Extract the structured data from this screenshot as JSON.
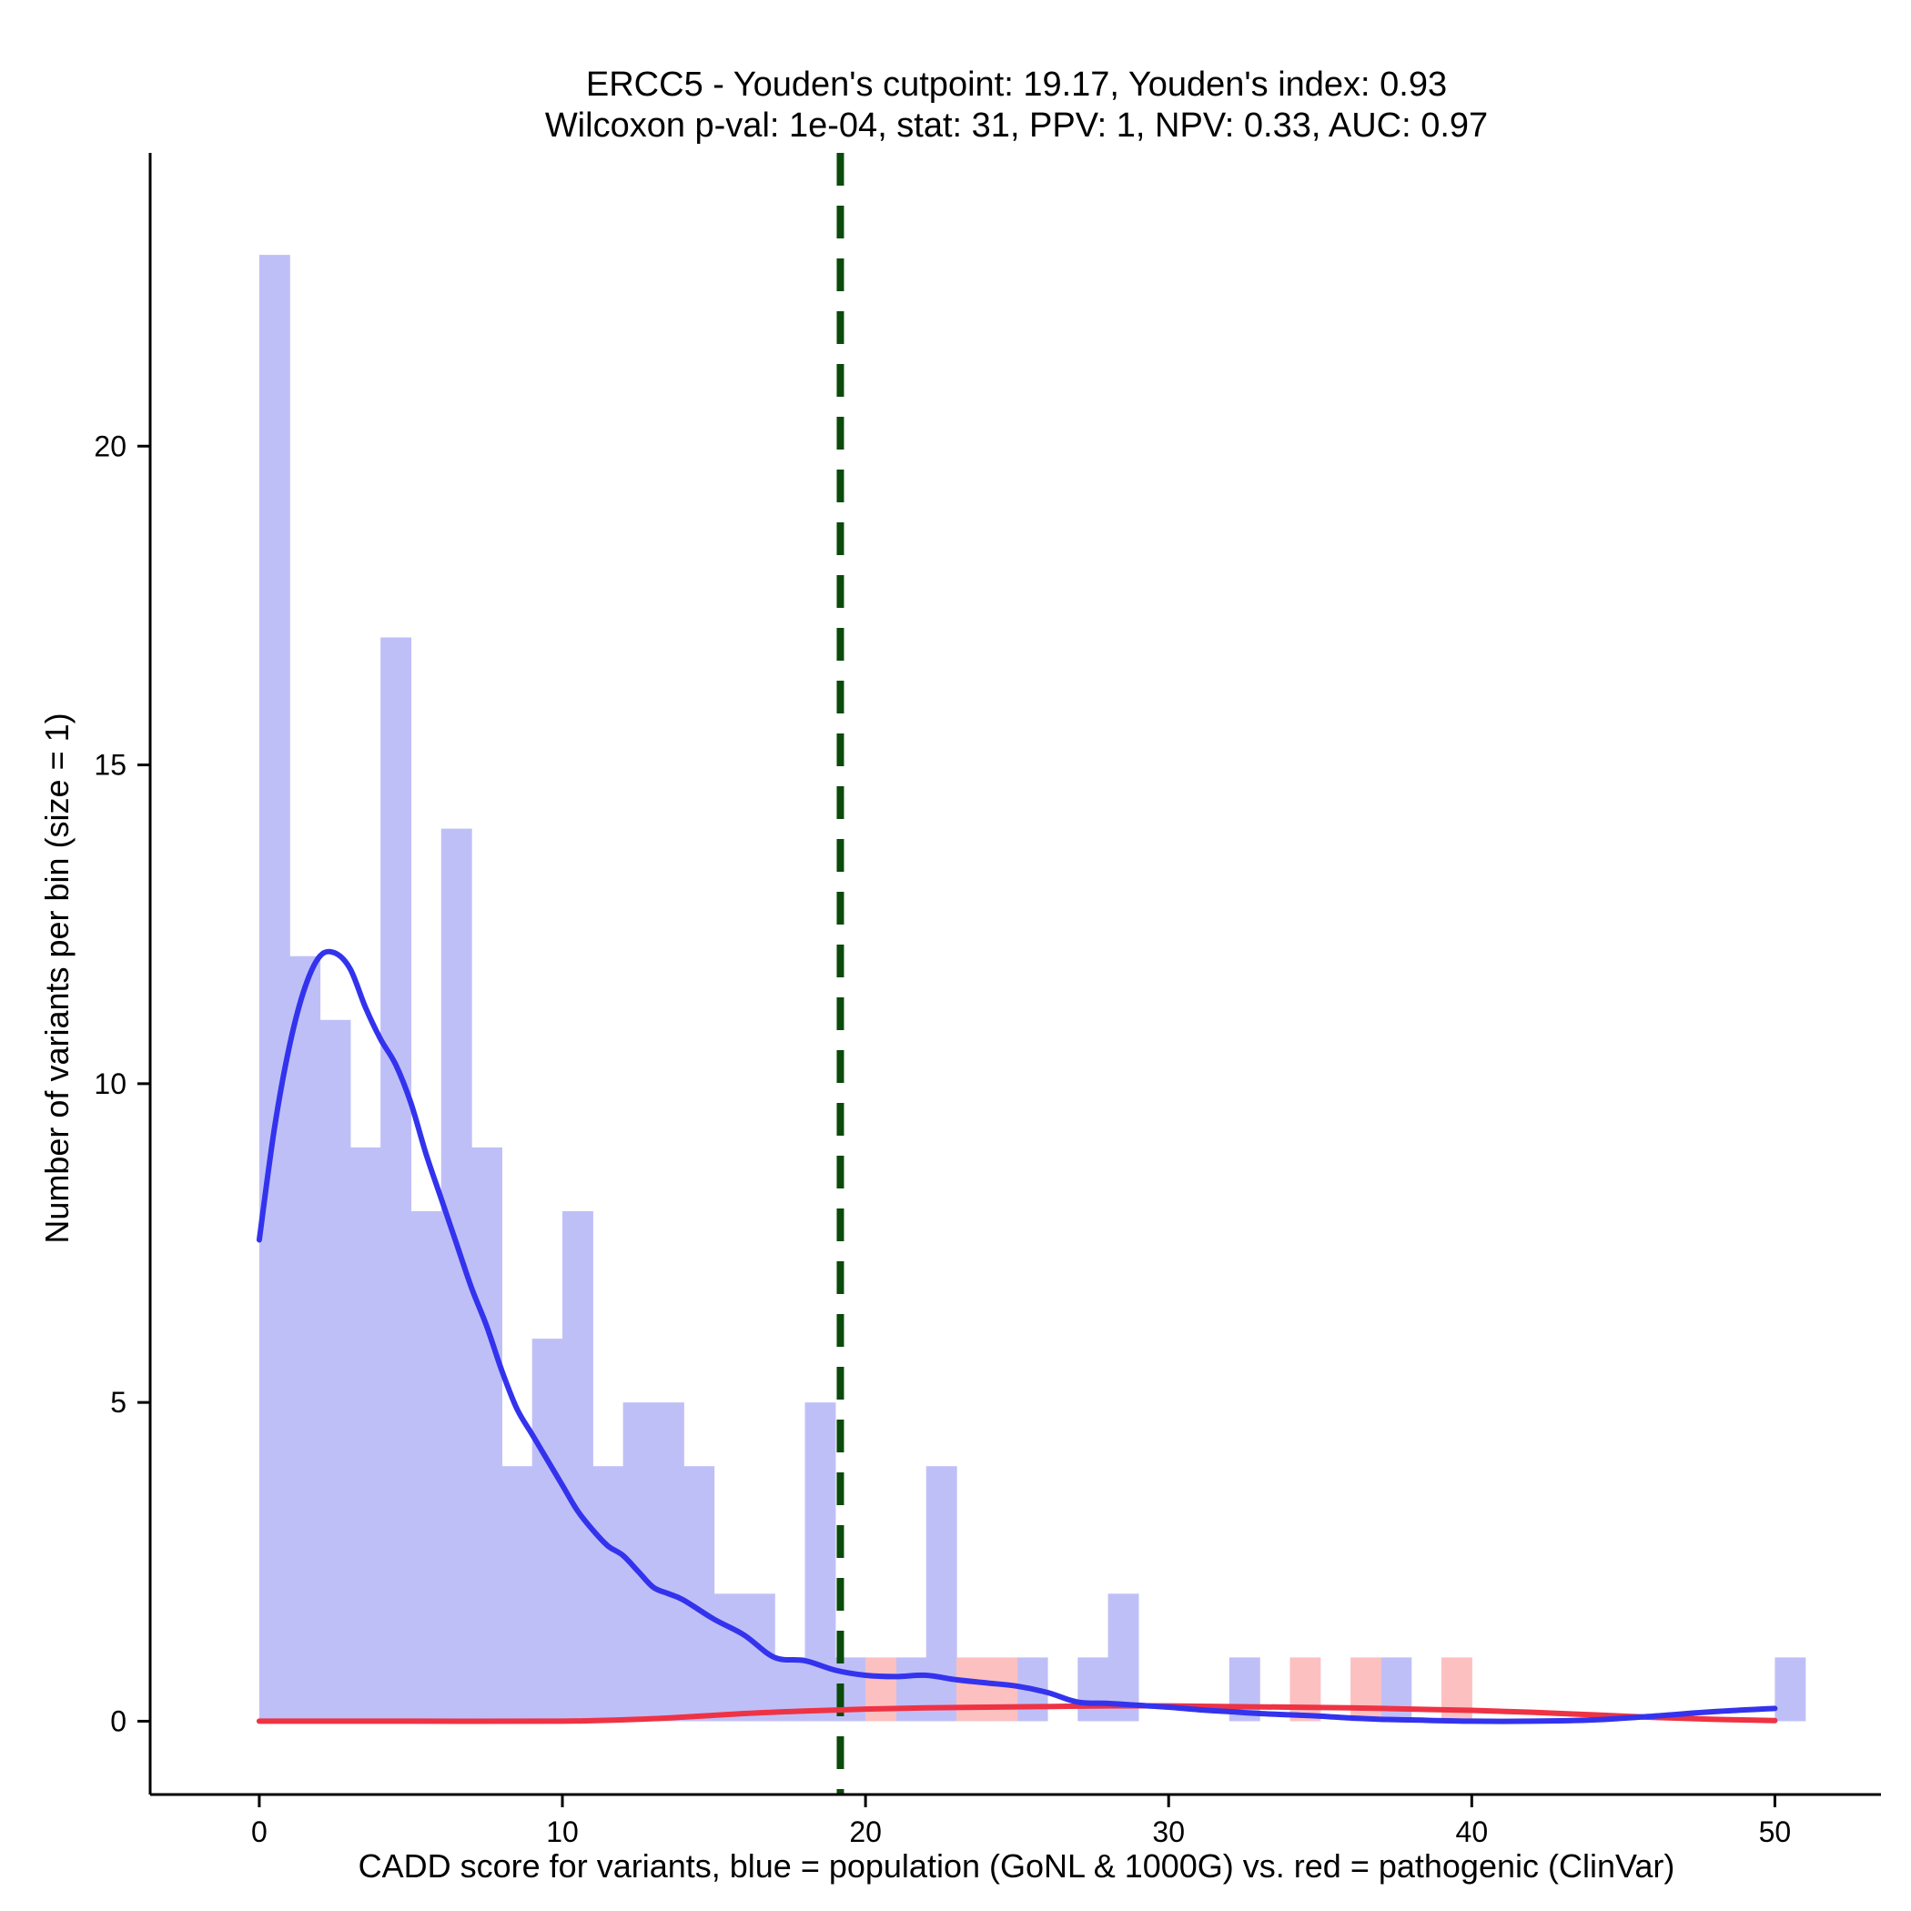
{
  "chart_data": {
    "type": "bar",
    "title_lines": [
      "ERCC5 - Youden's cutpoint: 19.17, Youden's index: 0.93",
      "Wilcoxon p-val: 1e-04, stat: 31, PPV: 1, NPV: 0.33, AUC: 0.97"
    ],
    "xlabel": "CADD score for variants, blue = population (GoNL & 1000G) vs. red = pathogenic (ClinVar)",
    "ylabel": "Number of variants per bin (size = 1)",
    "xlim": [
      -3.6,
      53.5
    ],
    "ylim": [
      -1.15,
      24.6
    ],
    "xticks": [
      "0",
      "10",
      "20",
      "30",
      "40",
      "50"
    ],
    "yticks": [
      "0",
      "5",
      "10",
      "15",
      "20"
    ],
    "cutpoint": 19.17,
    "colors": {
      "population_bar": "#bfbff8",
      "pathogenic_bar": "#fcc0c0",
      "population_line": "#3333ee",
      "pathogenic_line": "#ee3344",
      "cutpoint_line": "#0a4a0a"
    },
    "series": [
      {
        "name": "population",
        "bins": [
          {
            "x": 0,
            "count": 23
          },
          {
            "x": 1,
            "count": 12
          },
          {
            "x": 2,
            "count": 11
          },
          {
            "x": 3,
            "count": 9
          },
          {
            "x": 4,
            "count": 17
          },
          {
            "x": 5,
            "count": 8
          },
          {
            "x": 6,
            "count": 14
          },
          {
            "x": 7,
            "count": 9
          },
          {
            "x": 8,
            "count": 4
          },
          {
            "x": 9,
            "count": 6
          },
          {
            "x": 10,
            "count": 8
          },
          {
            "x": 11,
            "count": 4
          },
          {
            "x": 12,
            "count": 5
          },
          {
            "x": 13,
            "count": 5
          },
          {
            "x": 14,
            "count": 4
          },
          {
            "x": 15,
            "count": 2
          },
          {
            "x": 16,
            "count": 2
          },
          {
            "x": 17,
            "count": 1
          },
          {
            "x": 18,
            "count": 5
          },
          {
            "x": 19,
            "count": 1
          },
          {
            "x": 21,
            "count": 1
          },
          {
            "x": 22,
            "count": 4
          },
          {
            "x": 25,
            "count": 1
          },
          {
            "x": 27,
            "count": 1
          },
          {
            "x": 28,
            "count": 2
          },
          {
            "x": 32,
            "count": 1
          },
          {
            "x": 37,
            "count": 1
          },
          {
            "x": 50,
            "count": 1
          }
        ],
        "density": [
          [
            0,
            7.55
          ],
          [
            0.5,
            9.3
          ],
          [
            1,
            10.6
          ],
          [
            1.5,
            11.5
          ],
          [
            2,
            12.0
          ],
          [
            2.5,
            12.05
          ],
          [
            3,
            11.8
          ],
          [
            3.5,
            11.2
          ],
          [
            4,
            10.7
          ],
          [
            4.5,
            10.3
          ],
          [
            5,
            9.7
          ],
          [
            5.5,
            8.9
          ],
          [
            6,
            8.2
          ],
          [
            6.5,
            7.5
          ],
          [
            7,
            6.8
          ],
          [
            7.5,
            6.2
          ],
          [
            8,
            5.5
          ],
          [
            8.5,
            4.9
          ],
          [
            9,
            4.5
          ],
          [
            9.5,
            4.1
          ],
          [
            10,
            3.7
          ],
          [
            10.5,
            3.3
          ],
          [
            11,
            3.0
          ],
          [
            11.5,
            2.75
          ],
          [
            12,
            2.6
          ],
          [
            12.5,
            2.35
          ],
          [
            13,
            2.1
          ],
          [
            13.5,
            2.0
          ],
          [
            14,
            1.9
          ],
          [
            15,
            1.6
          ],
          [
            16,
            1.35
          ],
          [
            17,
            1.0
          ],
          [
            18,
            0.95
          ],
          [
            19,
            0.8
          ],
          [
            20,
            0.72
          ],
          [
            21,
            0.7
          ],
          [
            22,
            0.72
          ],
          [
            23,
            0.65
          ],
          [
            24,
            0.6
          ],
          [
            25,
            0.55
          ],
          [
            26,
            0.45
          ],
          [
            27,
            0.3
          ],
          [
            28,
            0.28
          ],
          [
            29,
            0.25
          ],
          [
            30,
            0.22
          ],
          [
            31,
            0.18
          ],
          [
            32,
            0.15
          ],
          [
            33,
            0.12
          ],
          [
            34,
            0.1
          ],
          [
            35,
            0.08
          ],
          [
            36,
            0.05
          ],
          [
            37,
            0.03
          ],
          [
            38,
            0.02
          ],
          [
            40,
            0.0
          ],
          [
            42,
            0.0
          ],
          [
            44,
            0.02
          ],
          [
            46,
            0.08
          ],
          [
            48,
            0.15
          ],
          [
            50,
            0.2
          ]
        ]
      },
      {
        "name": "pathogenic",
        "bins": [
          {
            "x": 20,
            "count": 1
          },
          {
            "x": 23,
            "count": 1
          },
          {
            "x": 24,
            "count": 1
          },
          {
            "x": 34,
            "count": 1
          },
          {
            "x": 36,
            "count": 1
          },
          {
            "x": 39,
            "count": 1
          }
        ],
        "density": [
          [
            0,
            0.0
          ],
          [
            5,
            0.0
          ],
          [
            10,
            0.0
          ],
          [
            13,
            0.04
          ],
          [
            16,
            0.12
          ],
          [
            18,
            0.16
          ],
          [
            20,
            0.19
          ],
          [
            22,
            0.21
          ],
          [
            24,
            0.22
          ],
          [
            26,
            0.23
          ],
          [
            28,
            0.24
          ],
          [
            30,
            0.24
          ],
          [
            32,
            0.23
          ],
          [
            34,
            0.22
          ],
          [
            36,
            0.21
          ],
          [
            38,
            0.19
          ],
          [
            40,
            0.17
          ],
          [
            42,
            0.14
          ],
          [
            44,
            0.1
          ],
          [
            46,
            0.06
          ],
          [
            48,
            0.03
          ],
          [
            50,
            0.01
          ]
        ]
      }
    ]
  }
}
